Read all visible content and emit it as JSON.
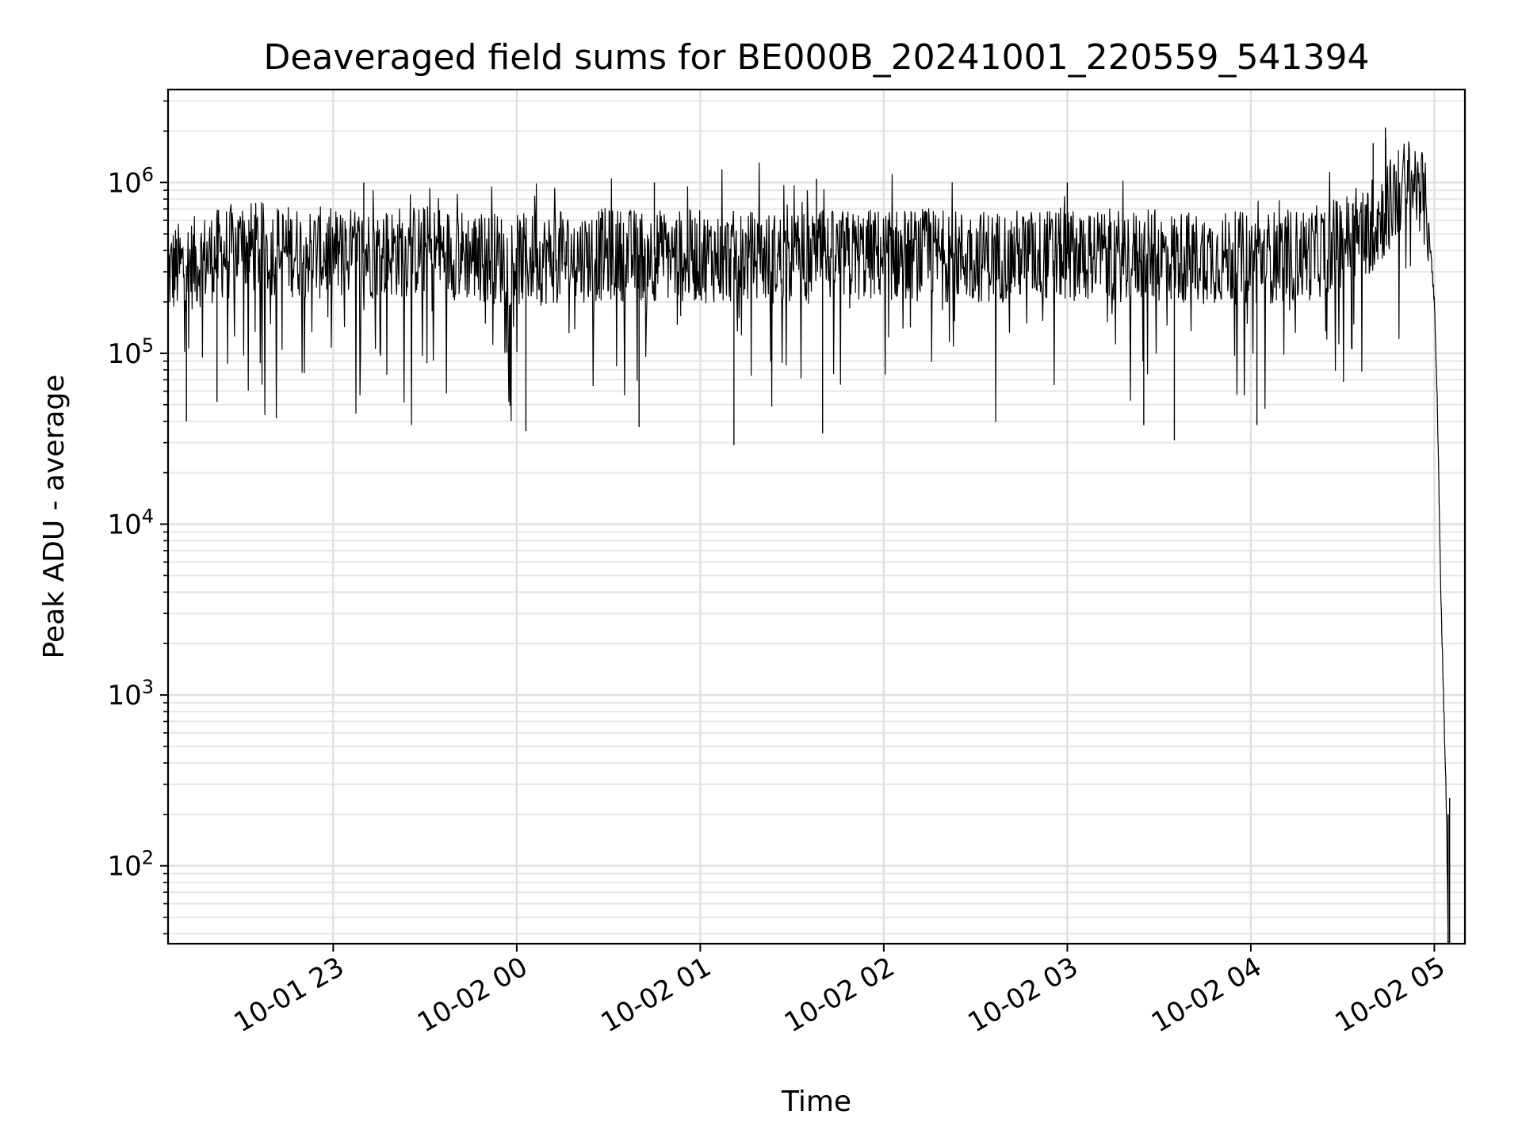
{
  "chart_data": {
    "type": "line",
    "title": "Deaveraged field sums for BE000B_20241001_220559_541394",
    "xlabel": "Time",
    "ylabel": "Peak ADU - average",
    "y_scale": "log",
    "ylim": [
      35,
      3500000
    ],
    "xlim": [
      "2024-10-01 22:06",
      "2024-10-02 05:10"
    ],
    "grid": "on (major and minor)",
    "x_ticks": [
      {
        "value": "2024-10-01 23:00",
        "label": "10-01 23"
      },
      {
        "value": "2024-10-02 00:00",
        "label": "10-02 00"
      },
      {
        "value": "2024-10-02 01:00",
        "label": "10-02 01"
      },
      {
        "value": "2024-10-02 02:00",
        "label": "10-02 02"
      },
      {
        "value": "2024-10-02 03:00",
        "label": "10-02 03"
      },
      {
        "value": "2024-10-02 04:00",
        "label": "10-02 04"
      },
      {
        "value": "2024-10-02 05:00",
        "label": "10-02 05"
      }
    ],
    "y_ticks": [
      {
        "value": 100,
        "base": "10",
        "exp": "2"
      },
      {
        "value": 1000,
        "base": "10",
        "exp": "3"
      },
      {
        "value": 10000,
        "base": "10",
        "exp": "4"
      },
      {
        "value": 100000,
        "base": "10",
        "exp": "5"
      },
      {
        "value": 1000000,
        "base": "10",
        "exp": "6"
      }
    ],
    "series": [
      {
        "color": "#000000",
        "baseline_level": 400000,
        "points": [
          {
            "x": "2024-10-01 22:06",
            "y": 300000
          },
          {
            "x": "2024-10-01 22:30",
            "y": 420000
          },
          {
            "x": "2024-10-01 23:00",
            "y": 380000
          },
          {
            "x": "2024-10-01 23:30",
            "y": 400000
          },
          {
            "x": "2024-10-02 00:00",
            "y": 350000
          },
          {
            "x": "2024-10-02 00:30",
            "y": 380000
          },
          {
            "x": "2024-10-02 01:00",
            "y": 370000
          },
          {
            "x": "2024-10-02 01:30",
            "y": 360000
          },
          {
            "x": "2024-10-02 02:00",
            "y": 380000
          },
          {
            "x": "2024-10-02 02:30",
            "y": 370000
          },
          {
            "x": "2024-10-02 03:00",
            "y": 380000
          },
          {
            "x": "2024-10-02 03:30",
            "y": 370000
          },
          {
            "x": "2024-10-02 04:00",
            "y": 360000
          },
          {
            "x": "2024-10-02 04:20",
            "y": 380000
          },
          {
            "x": "2024-10-02 04:40",
            "y": 550000
          },
          {
            "x": "2024-10-02 04:50",
            "y": 950000
          },
          {
            "x": "2024-10-02 04:55",
            "y": 1000000
          },
          {
            "x": "2024-10-02 04:58",
            "y": 600000
          },
          {
            "x": "2024-10-02 05:00",
            "y": 200000
          },
          {
            "x": "2024-10-02 05:01",
            "y": 50000
          },
          {
            "x": "2024-10-02 05:02",
            "y": 5000
          },
          {
            "x": "2024-10-02 05:03",
            "y": 1000
          },
          {
            "x": "2024-10-02 05:04",
            "y": 200
          },
          {
            "x": "2024-10-02 05:04:30",
            "y": 35
          }
        ],
        "spikes_up": [
          {
            "x": "2024-10-01 23:10",
            "y": 1000000
          },
          {
            "x": "2024-10-02 00:45",
            "y": 1000000
          },
          {
            "x": "2024-10-02 01:38",
            "y": 1050000
          },
          {
            "x": "2024-10-02 03:00",
            "y": 1000000
          },
          {
            "x": "2024-10-02 04:40",
            "y": 1700000
          },
          {
            "x": "2024-10-02 04:44",
            "y": 2100000
          },
          {
            "x": "2024-10-02 05:05",
            "y": 250
          }
        ],
        "spikes_down": [
          {
            "x": "2024-10-01 22:12",
            "y": 40000
          },
          {
            "x": "2024-10-01 22:22",
            "y": 52000
          },
          {
            "x": "2024-10-02 00:03",
            "y": 35000
          },
          {
            "x": "2024-10-02 00:40",
            "y": 37000
          },
          {
            "x": "2024-10-02 01:11",
            "y": 29000
          },
          {
            "x": "2024-10-02 01:40",
            "y": 34000
          },
          {
            "x": "2024-10-02 03:25",
            "y": 38000
          },
          {
            "x": "2024-10-02 03:35",
            "y": 31000
          },
          {
            "x": "2024-10-02 04:02",
            "y": 38000
          }
        ]
      }
    ]
  }
}
